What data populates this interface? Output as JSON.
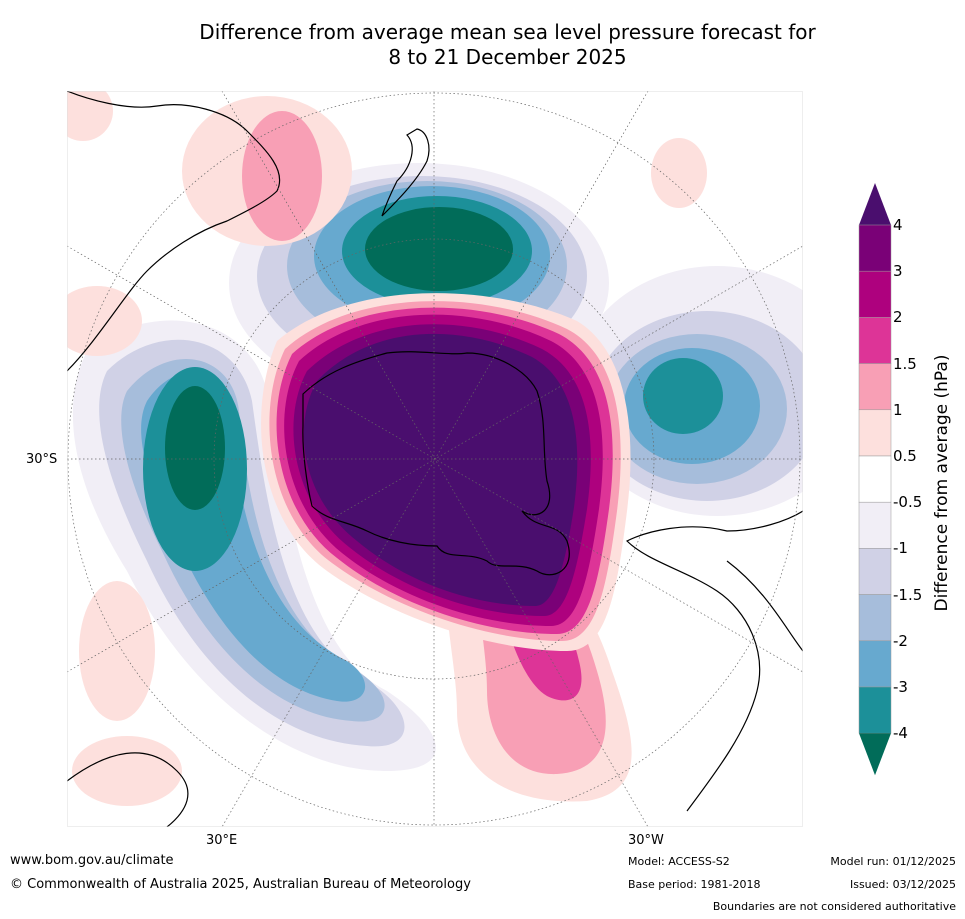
{
  "title": {
    "line1": "Difference from average mean sea level pressure forecast for",
    "line2": "8 to 21 December 2025"
  },
  "map": {
    "projection": "South polar stereographic",
    "graticule_labels": {
      "lat_30s": "30°S",
      "lon_30e": "30°E",
      "lon_30w": "30°W"
    }
  },
  "colorbar": {
    "title": "Difference from average (hPa)",
    "ticks": [
      "4",
      "3",
      "2",
      "1.5",
      "1",
      "0.5",
      "-0.5",
      "-1",
      "-1.5",
      "-2",
      "-3",
      "-4"
    ],
    "colors": {
      "above_4": "#4a0e6e",
      "3_to_4": "#7a0177",
      "2_to_3": "#ae017e",
      "1.5_to_2": "#dd3497",
      "1_to_1.5": "#f89fb5",
      "0.5_to_1": "#fde0dd",
      "neutral": "#ffffff",
      "-1_to_-0.5": "#f1eef6",
      "-1.5_to_-1": "#d0d1e6",
      "-2_to_-1.5": "#a6bddb",
      "-3_to_-2": "#67a9cf",
      "-4_to_-3": "#1c9099",
      "below_-4": "#016c59"
    }
  },
  "footer": {
    "url": "www.bom.gov.au/climate",
    "copyright": "© Commonwealth of Australia 2025, Australian Bureau of Meteorology",
    "model": "Model: ACCESS-S2",
    "base_period": "Base period: 1981-2018",
    "model_run": "Model run: 01/12/2025",
    "issued": "Issued: 03/12/2025",
    "disclaimer": "Boundaries are not considered authoritative"
  }
}
